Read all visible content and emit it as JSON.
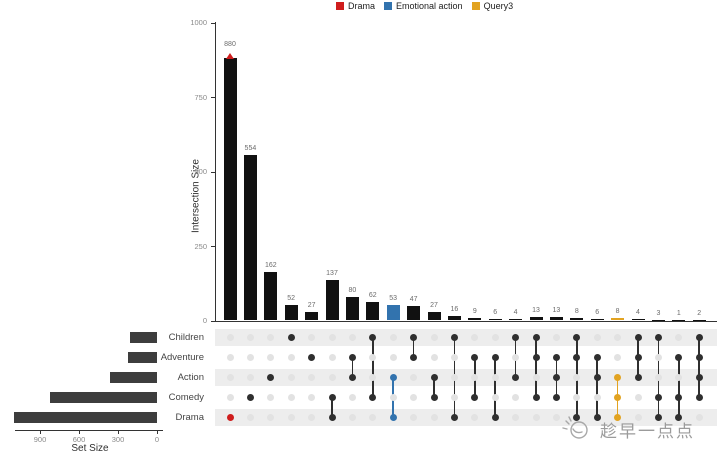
{
  "legend": {
    "items": [
      {
        "label": "Drama",
        "color": "#cf1d1d"
      },
      {
        "label": "Emotional action",
        "color": "#3273ae"
      },
      {
        "label": "Query3",
        "color": "#e2a321"
      }
    ]
  },
  "watermark": {
    "text": "趁早一点点"
  },
  "chart_data": {
    "type": "upset",
    "title": "",
    "intersection_axis": {
      "label": "Intersection Size",
      "ticks": [
        0,
        250,
        500,
        750,
        1000
      ],
      "range": [
        0,
        1000
      ]
    },
    "set_axis": {
      "label": "Set Size",
      "ticks": [
        900,
        600,
        300,
        0
      ],
      "range": [
        0,
        1100
      ]
    },
    "sets": [
      {
        "name": "Children",
        "size": 210
      },
      {
        "name": "Adventure",
        "size": 225
      },
      {
        "name": "Action",
        "size": 360
      },
      {
        "name": "Comedy",
        "size": 820
      },
      {
        "name": "Drama",
        "size": 1100
      }
    ],
    "intersections": [
      {
        "value": 880,
        "sets": [
          "Drama"
        ],
        "query": "Drama",
        "query_style": "point"
      },
      {
        "value": 554,
        "sets": [
          "Comedy"
        ]
      },
      {
        "value": 162,
        "sets": [
          "Action"
        ]
      },
      {
        "value": 52,
        "sets": [
          "Children"
        ]
      },
      {
        "value": 27,
        "sets": [
          "Adventure"
        ]
      },
      {
        "value": 137,
        "sets": [
          "Comedy",
          "Drama"
        ]
      },
      {
        "value": 80,
        "sets": [
          "Adventure",
          "Action"
        ]
      },
      {
        "value": 62,
        "sets": [
          "Children",
          "Comedy"
        ]
      },
      {
        "value": 53,
        "sets": [
          "Action",
          "Drama"
        ],
        "query": "Emotional action",
        "query_style": "fill"
      },
      {
        "value": 47,
        "sets": [
          "Children",
          "Adventure"
        ]
      },
      {
        "value": 27,
        "sets": [
          "Action",
          "Comedy"
        ]
      },
      {
        "value": 16,
        "sets": [
          "Children",
          "Drama"
        ]
      },
      {
        "value": 9,
        "sets": [
          "Adventure",
          "Comedy"
        ]
      },
      {
        "value": 6,
        "sets": [
          "Adventure",
          "Drama"
        ]
      },
      {
        "value": 4,
        "sets": [
          "Children",
          "Action"
        ]
      },
      {
        "value": 13,
        "sets": [
          "Children",
          "Adventure",
          "Comedy"
        ]
      },
      {
        "value": 13,
        "sets": [
          "Adventure",
          "Action",
          "Comedy"
        ]
      },
      {
        "value": 8,
        "sets": [
          "Children",
          "Adventure",
          "Drama"
        ]
      },
      {
        "value": 6,
        "sets": [
          "Adventure",
          "Action",
          "Drama"
        ]
      },
      {
        "value": 8,
        "sets": [
          "Action",
          "Comedy",
          "Drama"
        ],
        "query": "Query3",
        "query_style": "fill"
      },
      {
        "value": 4,
        "sets": [
          "Children",
          "Adventure",
          "Action"
        ]
      },
      {
        "value": 3,
        "sets": [
          "Children",
          "Comedy",
          "Drama"
        ]
      },
      {
        "value": 1,
        "sets": [
          "Adventure",
          "Comedy",
          "Drama"
        ]
      },
      {
        "value": 2,
        "sets": [
          "Children",
          "Adventure",
          "Action",
          "Comedy"
        ]
      }
    ],
    "colors": {
      "bar": "#111111",
      "set_bar": "#3d3d3d",
      "dot_filled": "#2f2f2f",
      "dot_empty": "#e2e2e2",
      "stripe": "#ededed",
      "axis": "#333333"
    },
    "legend_position": "top-center",
    "grid": false
  }
}
